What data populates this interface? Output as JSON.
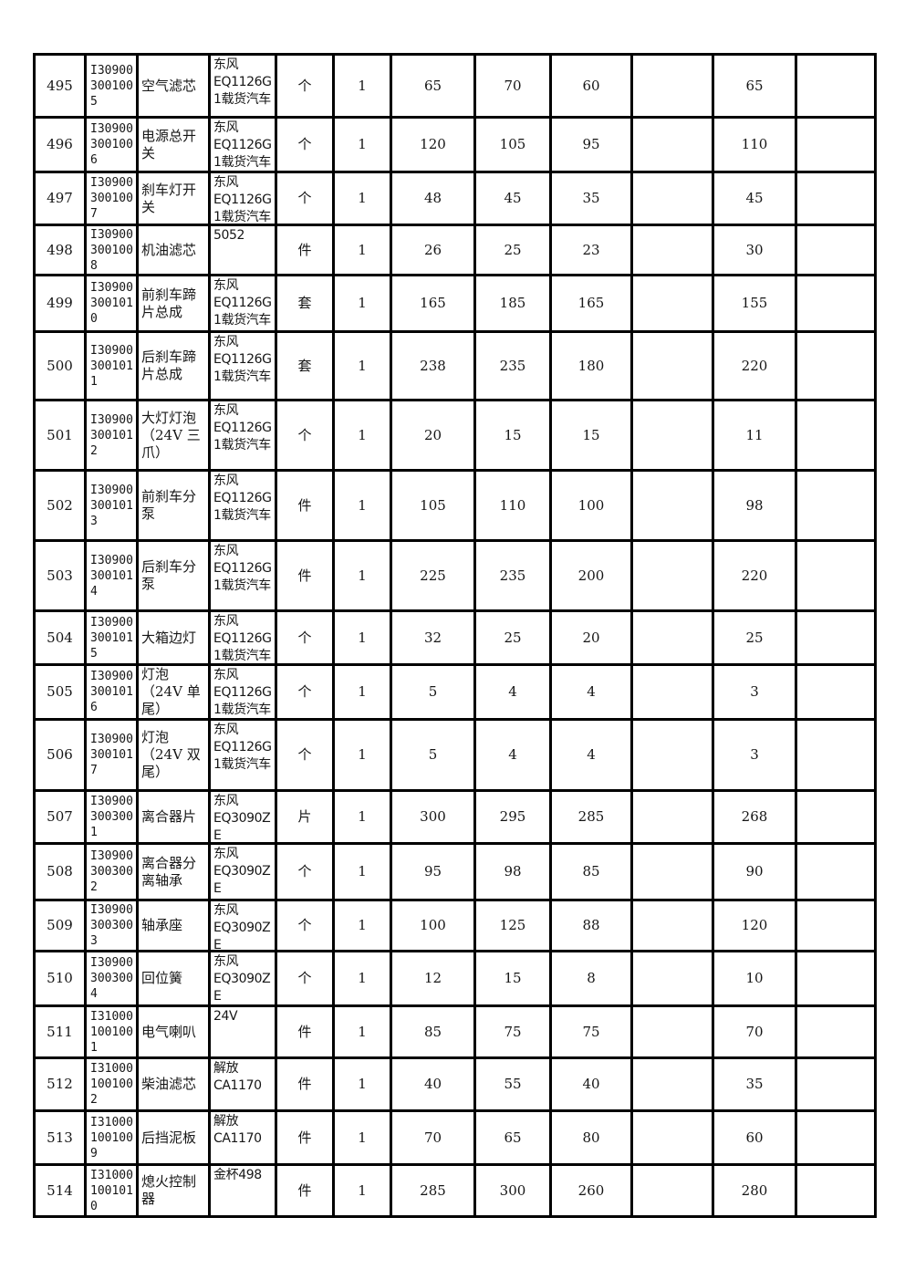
{
  "table": {
    "description": "parts-price-list",
    "rows": [
      {
        "no": "495",
        "code": "I309003001005",
        "name": "空气滤芯",
        "model": "东风EQ1126G1载货汽车",
        "unit": "个",
        "qty": "1",
        "price_a": "65",
        "price_b": "70",
        "price_c": "60",
        "blank_a": "",
        "price_d": "65",
        "blank_b": ""
      },
      {
        "no": "496",
        "code": "I309003001006",
        "name": "电源总开关",
        "model": "东风EQ1126G1载货汽车",
        "unit": "个",
        "qty": "1",
        "price_a": "120",
        "price_b": "105",
        "price_c": "95",
        "blank_a": "",
        "price_d": "110",
        "blank_b": ""
      },
      {
        "no": "497",
        "code": "I309003001007",
        "name": "刹车灯开关",
        "model": "东风EQ1126G1载货汽车",
        "unit": "个",
        "qty": "1",
        "price_a": "48",
        "price_b": "45",
        "price_c": "35",
        "blank_a": "",
        "price_d": "45",
        "blank_b": ""
      },
      {
        "no": "498",
        "code": "I309003001008",
        "name": "机油滤芯",
        "model": "5052",
        "unit": "件",
        "qty": "1",
        "price_a": "26",
        "price_b": "25",
        "price_c": "23",
        "blank_a": "",
        "price_d": "30",
        "blank_b": ""
      },
      {
        "no": "499",
        "code": "I309003001010",
        "name": "前刹车蹄片总成",
        "model": "东风EQ1126G1载货汽车",
        "unit": "套",
        "qty": "1",
        "price_a": "165",
        "price_b": "185",
        "price_c": "165",
        "blank_a": "",
        "price_d": "155",
        "blank_b": ""
      },
      {
        "no": "500",
        "code": "I309003001011",
        "name": "后刹车蹄片总成",
        "model": "东风EQ1126G1载货汽车",
        "unit": "套",
        "qty": "1",
        "price_a": "238",
        "price_b": "235",
        "price_c": "180",
        "blank_a": "",
        "price_d": "220",
        "blank_b": ""
      },
      {
        "no": "501",
        "code": "I309003001012",
        "name": "大灯灯泡（24V 三爪）",
        "model": "东风EQ1126G1载货汽车",
        "unit": "个",
        "qty": "1",
        "price_a": "20",
        "price_b": "15",
        "price_c": "15",
        "blank_a": "",
        "price_d": "11",
        "blank_b": ""
      },
      {
        "no": "502",
        "code": "I309003001013",
        "name": "前刹车分泵",
        "model": "东风EQ1126G1载货汽车",
        "unit": "件",
        "qty": "1",
        "price_a": "105",
        "price_b": "110",
        "price_c": "100",
        "blank_a": "",
        "price_d": "98",
        "blank_b": ""
      },
      {
        "no": "503",
        "code": "I309003001014",
        "name": "后刹车分泵",
        "model": "东风EQ1126G1载货汽车",
        "unit": "件",
        "qty": "1",
        "price_a": "225",
        "price_b": "235",
        "price_c": "200",
        "blank_a": "",
        "price_d": "220",
        "blank_b": ""
      },
      {
        "no": "504",
        "code": "I309003001015",
        "name": "大箱边灯",
        "model": "东风EQ1126G1载货汽车",
        "unit": "个",
        "qty": "1",
        "price_a": "32",
        "price_b": "25",
        "price_c": "20",
        "blank_a": "",
        "price_d": "25",
        "blank_b": ""
      },
      {
        "no": "505",
        "code": "I309003001016",
        "name": "灯泡（24V 单尾）",
        "model": "东风EQ1126G1载货汽车",
        "unit": "个",
        "qty": "1",
        "price_a": "5",
        "price_b": "4",
        "price_c": "4",
        "blank_a": "",
        "price_d": "3",
        "blank_b": ""
      },
      {
        "no": "506",
        "code": "I309003001017",
        "name": "灯泡（24V 双尾）",
        "model": "东风EQ1126G1载货汽车",
        "unit": "个",
        "qty": "1",
        "price_a": "5",
        "price_b": "4",
        "price_c": "4",
        "blank_a": "",
        "price_d": "3",
        "blank_b": ""
      },
      {
        "no": "507",
        "code": "I309003003001",
        "name": "离合器片",
        "model": "东风EQ3090ZE",
        "unit": "片",
        "qty": "1",
        "price_a": "300",
        "price_b": "295",
        "price_c": "285",
        "blank_a": "",
        "price_d": "268",
        "blank_b": ""
      },
      {
        "no": "508",
        "code": "I309003003002",
        "name": "离合器分离轴承",
        "model": "东风EQ3090ZE",
        "unit": "个",
        "qty": "1",
        "price_a": "95",
        "price_b": "98",
        "price_c": "85",
        "blank_a": "",
        "price_d": "90",
        "blank_b": ""
      },
      {
        "no": "509",
        "code": "I309003003003",
        "name": "轴承座",
        "model": "东风EQ3090ZE",
        "unit": "个",
        "qty": "1",
        "price_a": "100",
        "price_b": "125",
        "price_c": "88",
        "blank_a": "",
        "price_d": "120",
        "blank_b": ""
      },
      {
        "no": "510",
        "code": "I309003003004",
        "name": "回位簧",
        "model": "东风EQ3090ZE",
        "unit": "个",
        "qty": "1",
        "price_a": "12",
        "price_b": "15",
        "price_c": "8",
        "blank_a": "",
        "price_d": "10",
        "blank_b": ""
      },
      {
        "no": "511",
        "code": "I310001001001",
        "name": "电气喇叭",
        "model": "24V",
        "unit": "件",
        "qty": "1",
        "price_a": "85",
        "price_b": "75",
        "price_c": "75",
        "blank_a": "",
        "price_d": "70",
        "blank_b": ""
      },
      {
        "no": "512",
        "code": "I310001001002",
        "name": "柴油滤芯",
        "model": "解放CA1170",
        "unit": "件",
        "qty": "1",
        "price_a": "40",
        "price_b": "55",
        "price_c": "40",
        "blank_a": "",
        "price_d": "35",
        "blank_b": ""
      },
      {
        "no": "513",
        "code": "I310001001009",
        "name": "后挡泥板",
        "model": "解放CA1170",
        "unit": "件",
        "qty": "1",
        "price_a": "70",
        "price_b": "65",
        "price_c": "80",
        "blank_a": "",
        "price_d": "60",
        "blank_b": ""
      },
      {
        "no": "514",
        "code": "I310001001010",
        "name": "熄火控制器",
        "model": "金杯498",
        "unit": "件",
        "qty": "1",
        "price_a": "285",
        "price_b": "300",
        "price_c": "260",
        "blank_a": "",
        "price_d": "280",
        "blank_b": ""
      }
    ]
  }
}
